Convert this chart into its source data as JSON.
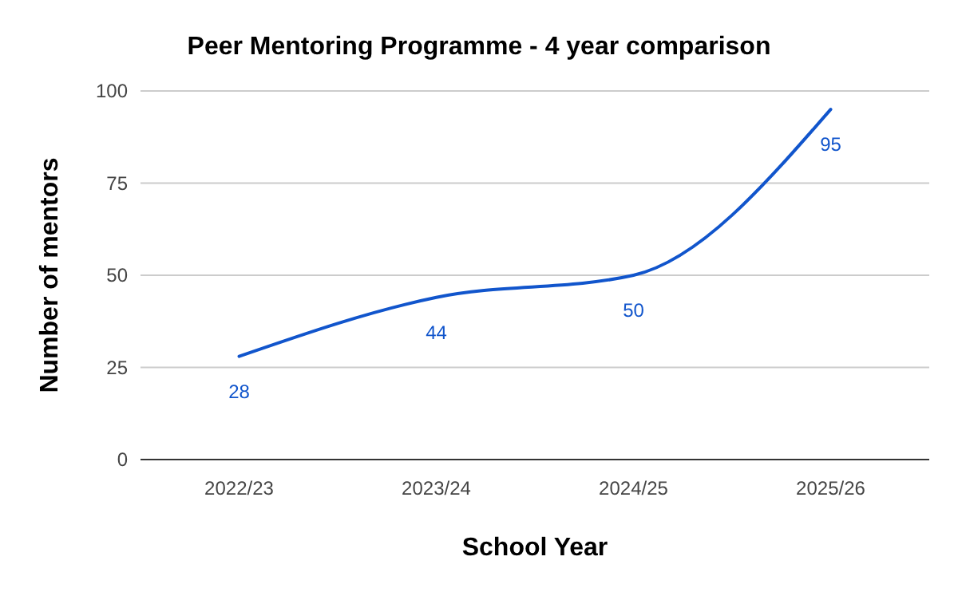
{
  "chart_data": {
    "type": "line",
    "title": "Peer Mentoring Programme - 4 year comparison",
    "xlabel": "School Year",
    "ylabel": "Number of mentors",
    "categories": [
      "2022/23",
      "2023/24",
      "2024/25",
      "2025/26"
    ],
    "series": [
      {
        "color": "#1155cc",
        "values": [
          28,
          44,
          50,
          95
        ]
      }
    ],
    "ylim": [
      0,
      100
    ],
    "yticks": [
      0,
      25,
      50,
      75,
      100
    ],
    "grid": "y",
    "data_labels": true,
    "marker": "none",
    "line_style": "solid"
  }
}
